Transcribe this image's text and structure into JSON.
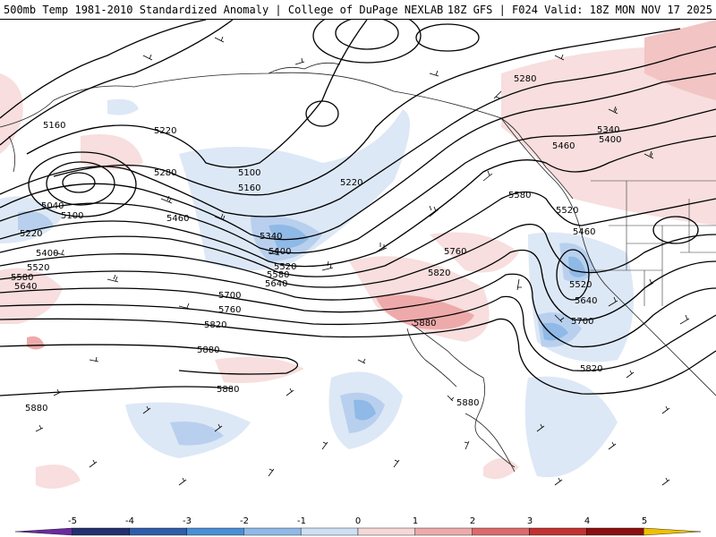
{
  "header": {
    "left": "500mb Temp 1981-2010 Standardized Anomaly | College of DuPage NEXLAB",
    "right": "18Z GFS | F024 Valid: 18Z MON NOV 17 2025"
  },
  "contour_labels": [
    {
      "id": "h5160a",
      "text": "5160"
    },
    {
      "id": "h5220a",
      "text": "5220"
    },
    {
      "id": "h5280a",
      "text": "5280"
    },
    {
      "id": "h5100a",
      "text": "5100"
    },
    {
      "id": "h5160b",
      "text": "5160"
    },
    {
      "id": "h5220b",
      "text": "5220"
    },
    {
      "id": "h5280b",
      "text": "5280"
    },
    {
      "id": "h5340a",
      "text": "5340"
    },
    {
      "id": "h5400a",
      "text": "5400"
    },
    {
      "id": "h5460a",
      "text": "5460"
    },
    {
      "id": "h5040a",
      "text": "5040"
    },
    {
      "id": "h5100b",
      "text": "5100"
    },
    {
      "id": "h5220c",
      "text": "5220"
    },
    {
      "id": "h5400b",
      "text": "5400"
    },
    {
      "id": "h5520a",
      "text": "5520"
    },
    {
      "id": "h5580a",
      "text": "5580"
    },
    {
      "id": "h5640a",
      "text": "5640"
    },
    {
      "id": "h5460b",
      "text": "5460"
    },
    {
      "id": "h5340b",
      "text": "5340"
    },
    {
      "id": "h5400c",
      "text": "5400"
    },
    {
      "id": "h5520b",
      "text": "5520"
    },
    {
      "id": "h5580b",
      "text": "5580"
    },
    {
      "id": "h5640b",
      "text": "5640"
    },
    {
      "id": "h5700a",
      "text": "5700"
    },
    {
      "id": "h5760a",
      "text": "5760"
    },
    {
      "id": "h5820a",
      "text": "5820"
    },
    {
      "id": "h5760b",
      "text": "5760"
    },
    {
      "id": "h5820b",
      "text": "5820"
    },
    {
      "id": "h5580c",
      "text": "5580"
    },
    {
      "id": "h5520c",
      "text": "5520"
    },
    {
      "id": "h5460c",
      "text": "5460"
    },
    {
      "id": "h5520d",
      "text": "5520"
    },
    {
      "id": "h5640c",
      "text": "5640"
    },
    {
      "id": "h5700b",
      "text": "5700"
    },
    {
      "id": "h5820c",
      "text": "5820"
    },
    {
      "id": "h5880a",
      "text": "5880"
    },
    {
      "id": "h5880b",
      "text": "5880"
    },
    {
      "id": "h5880c",
      "text": "5880"
    },
    {
      "id": "h5880d",
      "text": "5880"
    },
    {
      "id": "h5880e",
      "text": "5880"
    }
  ],
  "colorbar": {
    "ticks": [
      "-5",
      "-4",
      "-3",
      "-2",
      "-1",
      "0",
      "1",
      "2",
      "3",
      "4",
      "5"
    ],
    "colors": [
      "#6a2aa0",
      "#24306e",
      "#2f5da8",
      "#4a8fd6",
      "#8fb9e6",
      "#cfe0f4",
      "#f6d8d8",
      "#eeaaaa",
      "#dd6a6a",
      "#c23232",
      "#8c0f0f",
      "#f0c000"
    ]
  }
}
